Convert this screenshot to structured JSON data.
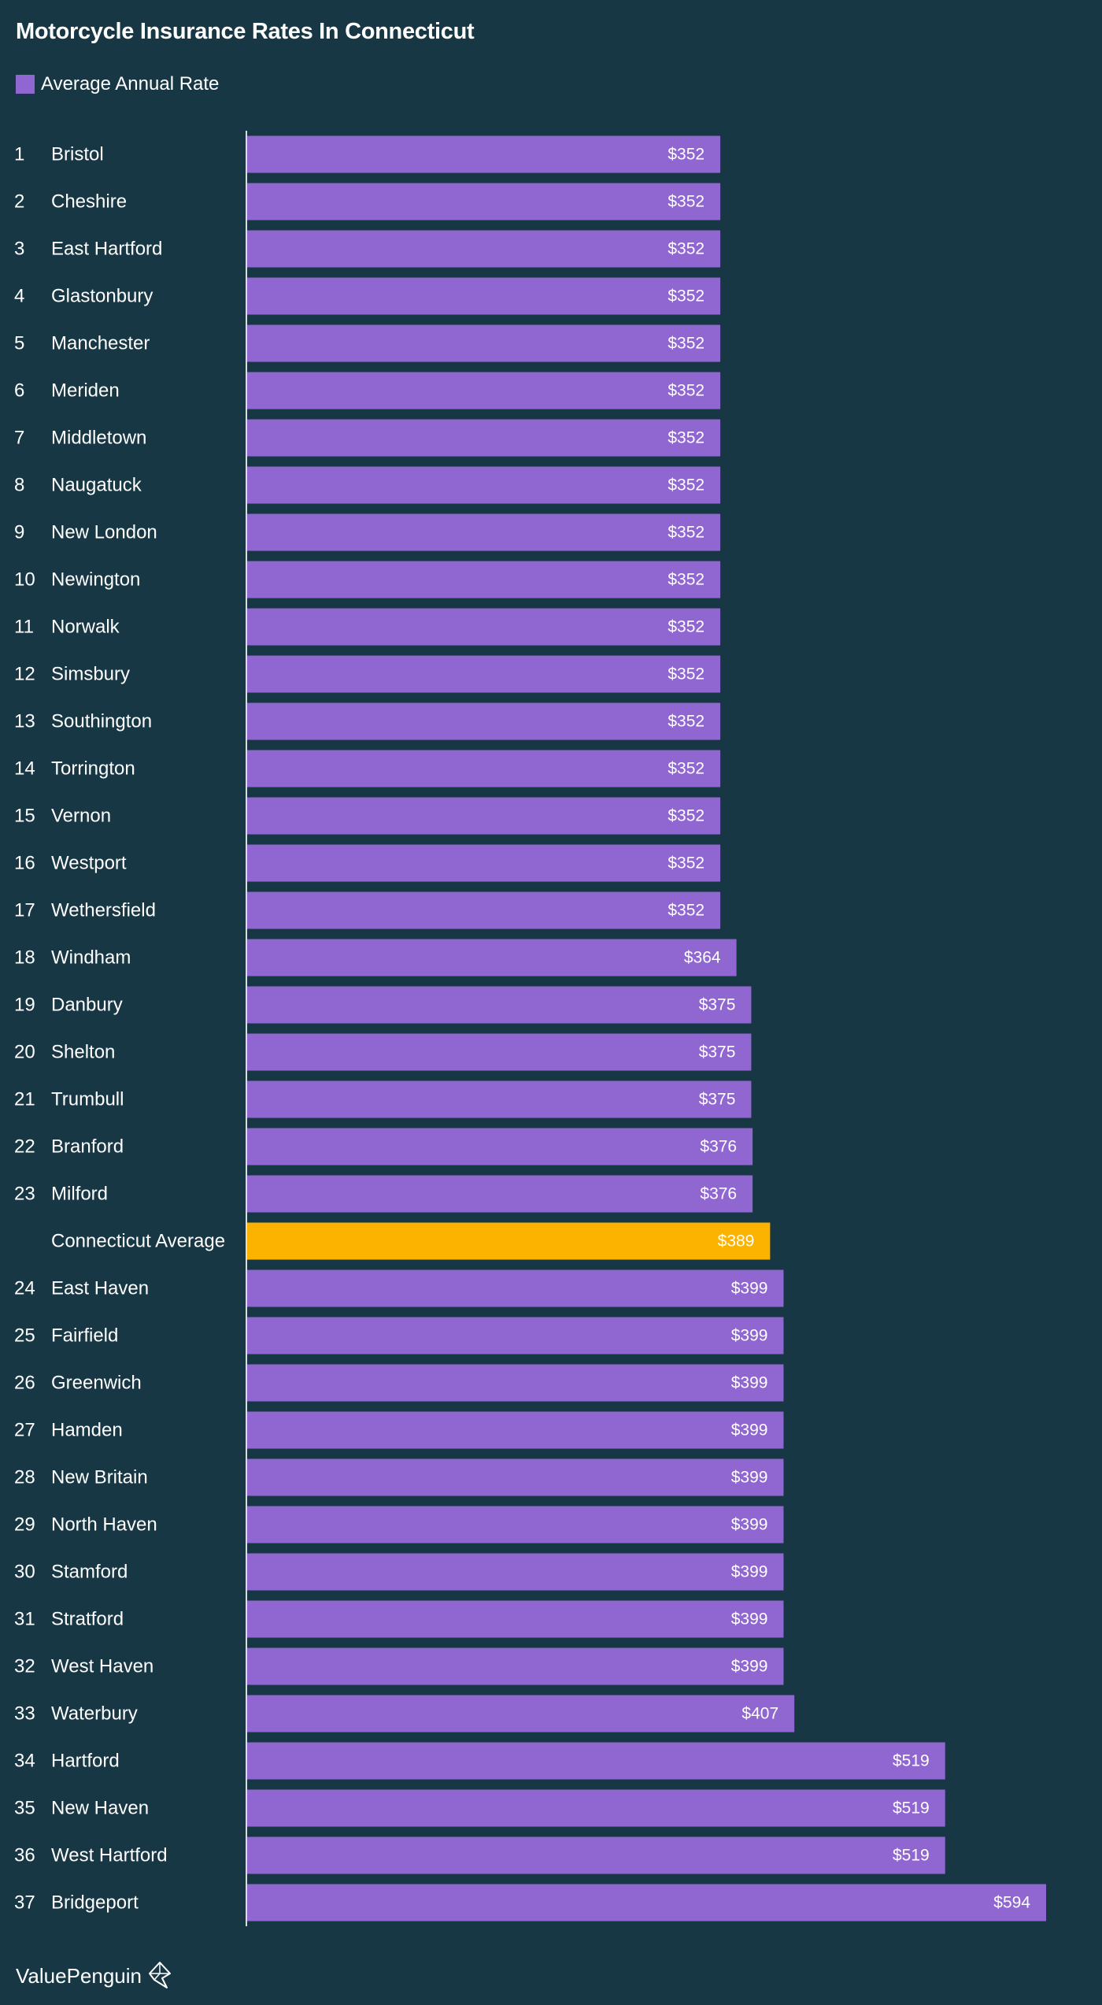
{
  "chart_data": {
    "type": "bar",
    "orientation": "horizontal",
    "title": "Motorcycle Insurance Rates In Connecticut",
    "legend": "Average Annual Rate",
    "legend_placement": "top-left",
    "value_prefix": "$",
    "grid": false,
    "xlim": [
      0,
      600
    ],
    "colors": {
      "bar": "#9066d1",
      "highlight": "#fbb300",
      "background": "#173745",
      "text": "#ffffff",
      "axis": "#d8dde0"
    },
    "rows": [
      {
        "rank": "1",
        "city": "Bristol",
        "value": 352
      },
      {
        "rank": "2",
        "city": "Cheshire",
        "value": 352
      },
      {
        "rank": "3",
        "city": "East Hartford",
        "value": 352
      },
      {
        "rank": "4",
        "city": "Glastonbury",
        "value": 352
      },
      {
        "rank": "5",
        "city": "Manchester",
        "value": 352
      },
      {
        "rank": "6",
        "city": "Meriden",
        "value": 352
      },
      {
        "rank": "7",
        "city": "Middletown",
        "value": 352
      },
      {
        "rank": "8",
        "city": "Naugatuck",
        "value": 352
      },
      {
        "rank": "9",
        "city": "New London",
        "value": 352
      },
      {
        "rank": "10",
        "city": "Newington",
        "value": 352
      },
      {
        "rank": "11",
        "city": "Norwalk",
        "value": 352
      },
      {
        "rank": "12",
        "city": "Simsbury",
        "value": 352
      },
      {
        "rank": "13",
        "city": "Southington",
        "value": 352
      },
      {
        "rank": "14",
        "city": "Torrington",
        "value": 352
      },
      {
        "rank": "15",
        "city": "Vernon",
        "value": 352
      },
      {
        "rank": "16",
        "city": "Westport",
        "value": 352
      },
      {
        "rank": "17",
        "city": "Wethersfield",
        "value": 352
      },
      {
        "rank": "18",
        "city": "Windham",
        "value": 364
      },
      {
        "rank": "19",
        "city": "Danbury",
        "value": 375
      },
      {
        "rank": "20",
        "city": "Shelton",
        "value": 375
      },
      {
        "rank": "21",
        "city": "Trumbull",
        "value": 375
      },
      {
        "rank": "22",
        "city": "Branford",
        "value": 376
      },
      {
        "rank": "23",
        "city": "Milford",
        "value": 376
      },
      {
        "rank": "",
        "city": "Connecticut Average",
        "value": 389,
        "highlight": true
      },
      {
        "rank": "24",
        "city": "East Haven",
        "value": 399
      },
      {
        "rank": "25",
        "city": "Fairfield",
        "value": 399
      },
      {
        "rank": "26",
        "city": "Greenwich",
        "value": 399
      },
      {
        "rank": "27",
        "city": "Hamden",
        "value": 399
      },
      {
        "rank": "28",
        "city": "New Britain",
        "value": 399
      },
      {
        "rank": "29",
        "city": "North Haven",
        "value": 399
      },
      {
        "rank": "30",
        "city": "Stamford",
        "value": 399
      },
      {
        "rank": "31",
        "city": "Stratford",
        "value": 399
      },
      {
        "rank": "32",
        "city": "West Haven",
        "value": 399
      },
      {
        "rank": "33",
        "city": "Waterbury",
        "value": 407
      },
      {
        "rank": "34",
        "city": "Hartford",
        "value": 519
      },
      {
        "rank": "35",
        "city": "New Haven",
        "value": 519
      },
      {
        "rank": "36",
        "city": "West Hartford",
        "value": 519
      },
      {
        "rank": "37",
        "city": "Bridgeport",
        "value": 594
      }
    ]
  },
  "footer": {
    "brand": "ValuePenguin",
    "logo_icon": "penguin-logo-icon"
  }
}
